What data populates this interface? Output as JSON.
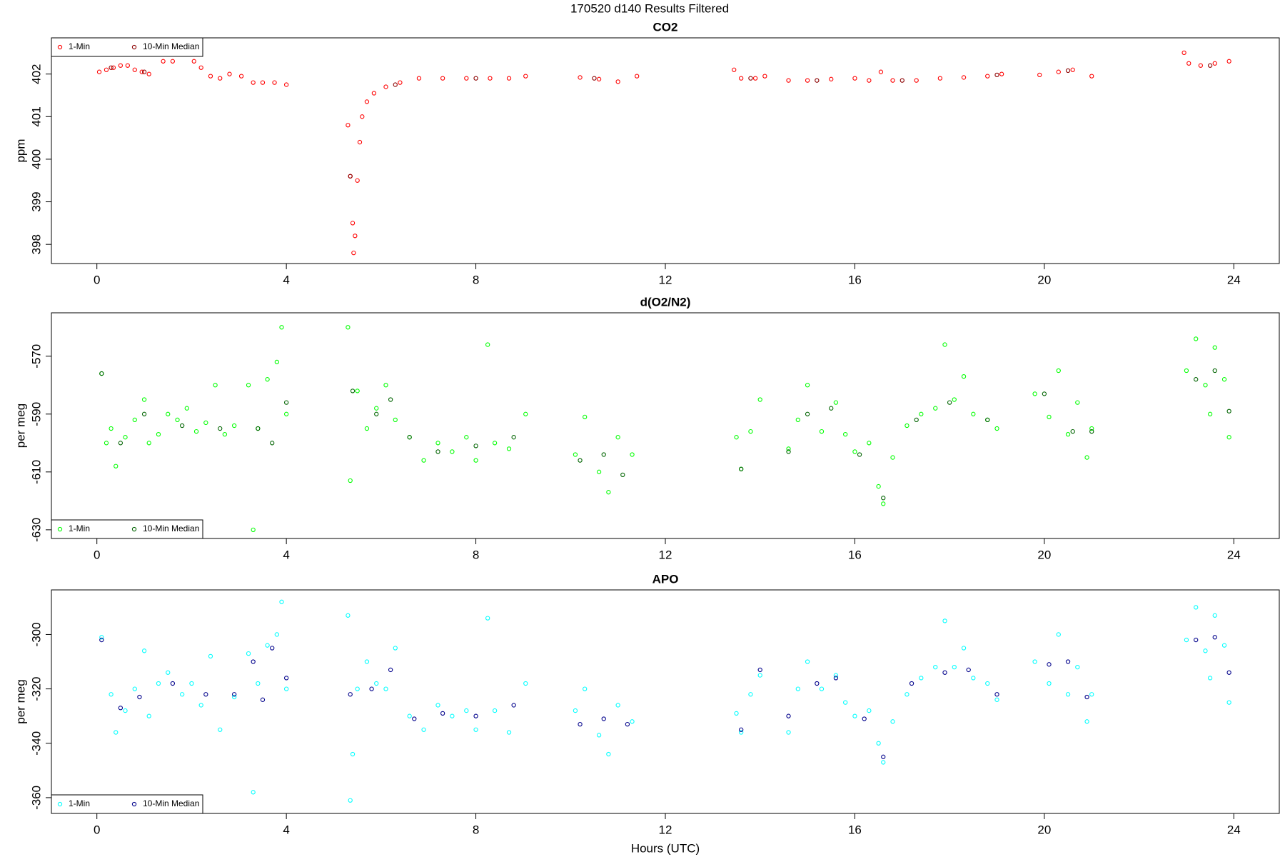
{
  "title": "170520   d140   Results Filtered",
  "chart_data": [
    {
      "type": "scatter",
      "title": "CO2",
      "ylabel": "ppm",
      "xlim": [
        -0.96,
        24.96
      ],
      "xticks": [
        0,
        4,
        8,
        12,
        16,
        20,
        24
      ],
      "ylim": [
        397.55,
        402.85
      ],
      "yticks": [
        398,
        399,
        400,
        401,
        402
      ],
      "legend": "upper left",
      "series": [
        {
          "name": "1-Min",
          "color": "#ff0000",
          "x": [
            0.05,
            0.2,
            0.35,
            0.5,
            0.65,
            0.8,
            0.95,
            1.1,
            1.4,
            1.6,
            2.05,
            2.2,
            2.4,
            2.6,
            2.8,
            3.05,
            3.3,
            3.5,
            3.75,
            4.0,
            5.3,
            5.35,
            5.4,
            5.42,
            5.45,
            5.5,
            5.55,
            5.6,
            5.7,
            5.85,
            6.1,
            6.4,
            6.8,
            7.3,
            7.8,
            8.3,
            8.7,
            9.05,
            10.2,
            10.6,
            11.0,
            11.4,
            13.45,
            13.6,
            13.9,
            14.1,
            14.6,
            15.0,
            15.5,
            16.0,
            16.3,
            16.55,
            16.8,
            17.3,
            17.8,
            18.3,
            18.8,
            19.1,
            19.9,
            20.3,
            20.6,
            21.0,
            22.95,
            23.05,
            23.3,
            23.6,
            23.9
          ],
          "values": [
            402.05,
            402.1,
            402.15,
            402.2,
            402.2,
            402.1,
            402.05,
            402.0,
            402.3,
            402.3,
            402.3,
            402.15,
            401.95,
            401.9,
            402.0,
            401.95,
            401.8,
            401.8,
            401.8,
            401.75,
            400.8,
            399.6,
            398.5,
            397.8,
            398.2,
            399.5,
            400.4,
            401.0,
            401.35,
            401.55,
            401.7,
            401.8,
            401.9,
            401.9,
            401.9,
            401.9,
            401.9,
            401.95,
            401.92,
            401.88,
            401.82,
            401.95,
            402.1,
            401.9,
            401.9,
            401.95,
            401.85,
            401.85,
            401.88,
            401.9,
            401.85,
            402.05,
            401.85,
            401.85,
            401.9,
            401.92,
            401.95,
            402.0,
            401.98,
            402.05,
            402.1,
            401.95,
            402.5,
            402.25,
            402.2,
            402.25,
            402.3
          ]
        },
        {
          "name": "10-Min Median",
          "color": "#8b0000",
          "x": [
            0.3,
            1.0,
            5.35,
            6.3,
            8.0,
            10.5,
            13.8,
            15.2,
            17.0,
            19.0,
            20.5,
            23.5
          ],
          "values": [
            402.15,
            402.05,
            399.6,
            401.75,
            401.9,
            401.9,
            401.9,
            401.85,
            401.85,
            401.98,
            402.08,
            402.2
          ]
        }
      ]
    },
    {
      "type": "scatter",
      "title": "d(O2/N2)",
      "ylabel": "per meg",
      "xlim": [
        -0.96,
        24.96
      ],
      "xticks": [
        0,
        4,
        8,
        12,
        16,
        20,
        24
      ],
      "ylim": [
        -633,
        -555
      ],
      "yticks": [
        -630,
        -610,
        -590,
        -570
      ],
      "legend": "lower left",
      "series": [
        {
          "name": "1-Min",
          "color": "#00ff00",
          "x": [
            0.1,
            0.2,
            0.3,
            0.4,
            0.6,
            0.8,
            1.0,
            1.1,
            1.3,
            1.5,
            1.7,
            1.9,
            2.1,
            2.3,
            2.5,
            2.7,
            2.9,
            3.2,
            3.3,
            3.4,
            3.6,
            3.8,
            3.9,
            4.0,
            5.3,
            5.35,
            5.5,
            5.7,
            5.9,
            6.1,
            6.3,
            6.6,
            6.9,
            7.2,
            7.5,
            7.8,
            8.0,
            8.25,
            8.4,
            8.7,
            9.05,
            10.1,
            10.3,
            10.6,
            10.8,
            11.0,
            11.3,
            13.5,
            13.6,
            13.8,
            14.0,
            14.6,
            14.8,
            15.0,
            15.3,
            15.6,
            15.8,
            16.0,
            16.3,
            16.5,
            16.6,
            16.8,
            17.1,
            17.4,
            17.7,
            17.9,
            18.1,
            18.3,
            18.5,
            18.8,
            19.0,
            19.8,
            20.1,
            20.3,
            20.5,
            20.7,
            20.9,
            21.0,
            23.0,
            23.2,
            23.4,
            23.5,
            23.6,
            23.8,
            23.9
          ],
          "values": [
            -576,
            -600,
            -595,
            -608,
            -598,
            -592,
            -585,
            -600,
            -597,
            -590,
            -592,
            -588,
            -596,
            -593,
            -580,
            -597,
            -594,
            -580,
            -630,
            -595,
            -578,
            -572,
            -560,
            -590,
            -560,
            -613,
            -582,
            -595,
            -588,
            -580,
            -592,
            -598,
            -606,
            -600,
            -603,
            -598,
            -606,
            -566,
            -600,
            -602,
            -590,
            -604,
            -591,
            -610,
            -617,
            -598,
            -604,
            -598,
            -609,
            -596,
            -585,
            -602,
            -592,
            -580,
            -596,
            -586,
            -597,
            -603,
            -600,
            -615,
            -621,
            -605,
            -594,
            -590,
            -588,
            -566,
            -585,
            -577,
            -590,
            -592,
            -595,
            -583,
            -591,
            -575,
            -597,
            -586,
            -605,
            -595,
            -575,
            -564,
            -580,
            -590,
            -567,
            -578,
            -598
          ]
        },
        {
          "name": "10-Min Median",
          "color": "#006400",
          "x": [
            0.1,
            0.5,
            1.0,
            1.8,
            2.6,
            3.4,
            3.7,
            4.0,
            5.4,
            5.9,
            6.2,
            6.6,
            7.2,
            8.0,
            8.8,
            10.2,
            10.7,
            11.1,
            13.6,
            14.6,
            15.0,
            15.5,
            16.1,
            16.6,
            17.3,
            18.0,
            18.8,
            20.0,
            20.6,
            21.0,
            23.2,
            23.6,
            23.9
          ],
          "values": [
            -576,
            -600,
            -590,
            -594,
            -595,
            -595,
            -600,
            -586,
            -582,
            -590,
            -585,
            -598,
            -603,
            -601,
            -598,
            -606,
            -604,
            -611,
            -609,
            -603,
            -590,
            -588,
            -604,
            -619,
            -592,
            -586,
            -592,
            -583,
            -596,
            -596,
            -578,
            -575,
            -589
          ]
        }
      ]
    },
    {
      "type": "scatter",
      "title": "APO",
      "ylabel": "per meg",
      "xlabel": "Hours (UTC)",
      "xlim": [
        -0.96,
        24.96
      ],
      "xticks": [
        0,
        4,
        8,
        12,
        16,
        20,
        24
      ],
      "ylim": [
        -365.8,
        -283.6
      ],
      "yticks": [
        -360,
        -340,
        -320,
        -300
      ],
      "legend": "lower left",
      "series": [
        {
          "name": "1-Min",
          "color": "#00ffff",
          "x": [
            0.1,
            0.3,
            0.4,
            0.6,
            0.8,
            1.0,
            1.1,
            1.3,
            1.5,
            1.8,
            2.0,
            2.2,
            2.4,
            2.6,
            2.9,
            3.2,
            3.3,
            3.4,
            3.6,
            3.8,
            3.9,
            4.0,
            5.3,
            5.35,
            5.4,
            5.5,
            5.7,
            5.9,
            6.1,
            6.3,
            6.6,
            6.9,
            7.2,
            7.5,
            7.8,
            8.0,
            8.25,
            8.4,
            8.7,
            9.05,
            10.1,
            10.3,
            10.6,
            10.8,
            11.0,
            11.3,
            13.5,
            13.6,
            13.8,
            14.0,
            14.6,
            14.8,
            15.0,
            15.3,
            15.6,
            15.8,
            16.0,
            16.3,
            16.5,
            16.6,
            16.8,
            17.1,
            17.4,
            17.7,
            17.9,
            18.1,
            18.3,
            18.5,
            18.8,
            19.0,
            19.8,
            20.1,
            20.3,
            20.5,
            20.7,
            20.9,
            21.0,
            23.0,
            23.2,
            23.4,
            23.5,
            23.6,
            23.8,
            23.9
          ],
          "values": [
            -301,
            -322,
            -336,
            -328,
            -320,
            -306,
            -330,
            -318,
            -314,
            -322,
            -318,
            -326,
            -308,
            -335,
            -323,
            -307,
            -358,
            -318,
            -304,
            -300,
            -288,
            -320,
            -293,
            -361,
            -344,
            -320,
            -310,
            -318,
            -320,
            -305,
            -330,
            -335,
            -326,
            -330,
            -328,
            -335,
            -294,
            -328,
            -336,
            -318,
            -328,
            -320,
            -337,
            -344,
            -326,
            -332,
            -329,
            -336,
            -322,
            -315,
            -336,
            -320,
            -310,
            -320,
            -315,
            -325,
            -330,
            -328,
            -340,
            -347,
            -332,
            -322,
            -316,
            -312,
            -295,
            -312,
            -305,
            -316,
            -318,
            -324,
            -310,
            -318,
            -300,
            -322,
            -312,
            -332,
            -322,
            -302,
            -290,
            -306,
            -316,
            -293,
            -304,
            -325
          ]
        },
        {
          "name": "10-Min Median",
          "color": "#00008b",
          "x": [
            0.1,
            0.5,
            0.9,
            1.6,
            2.3,
            2.9,
            3.3,
            3.5,
            3.7,
            4.0,
            5.35,
            5.8,
            6.2,
            6.7,
            7.3,
            8.0,
            8.8,
            10.2,
            10.7,
            11.2,
            13.6,
            14.0,
            14.6,
            15.2,
            15.6,
            16.2,
            16.6,
            17.2,
            17.9,
            18.4,
            19.0,
            20.1,
            20.5,
            20.9,
            23.2,
            23.6,
            23.9
          ],
          "values": [
            -302,
            -327,
            -323,
            -318,
            -322,
            -322,
            -310,
            -324,
            -305,
            -316,
            -322,
            -320,
            -313,
            -331,
            -329,
            -330,
            -326,
            -333,
            -331,
            -333,
            -335,
            -313,
            -330,
            -318,
            -316,
            -331,
            -345,
            -318,
            -314,
            -313,
            -322,
            -311,
            -310,
            -323,
            -302,
            -301,
            -314
          ]
        }
      ]
    }
  ]
}
